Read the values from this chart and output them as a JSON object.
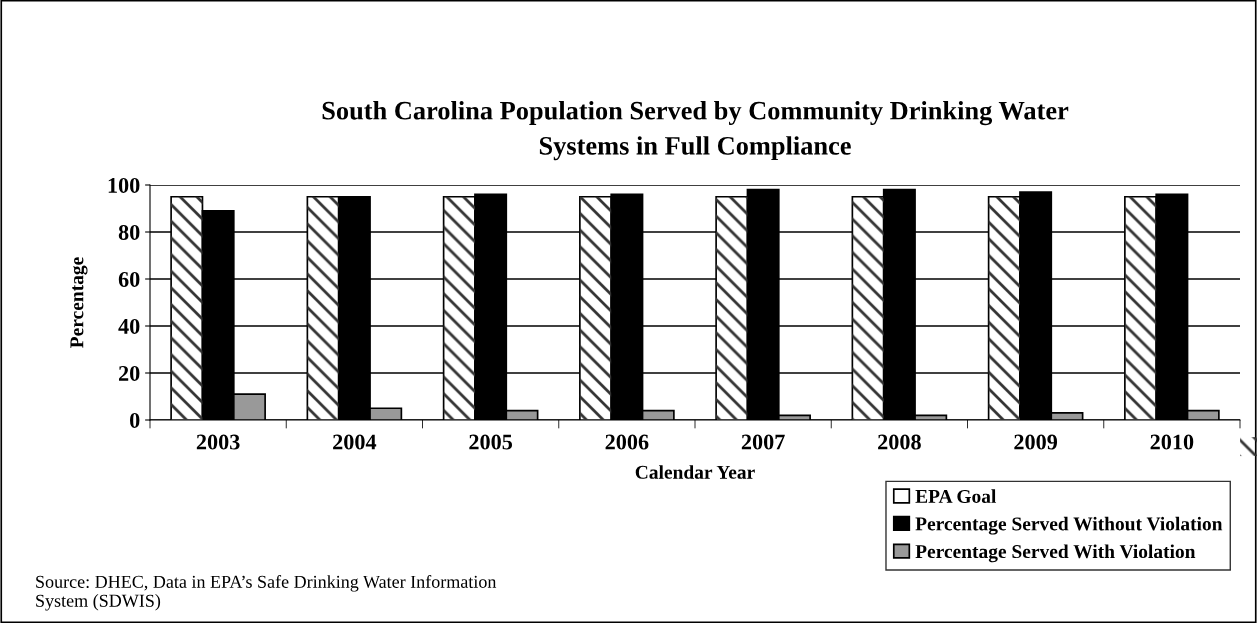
{
  "chart_data": {
    "type": "bar",
    "title": "South Carolina Population Served by Community Drinking Water\nSystems in Full Compliance",
    "xlabel": "Calendar Year",
    "ylabel": "Percentage",
    "categories": [
      "2003",
      "2004",
      "2005",
      "2006",
      "2007",
      "2008",
      "2009",
      "2010"
    ],
    "series": [
      {
        "name": "EPA Goal",
        "color": "#ffffff",
        "values": [
          95,
          95,
          95,
          95,
          95,
          95,
          95,
          95
        ]
      },
      {
        "name": "Percentage Served Without Violation",
        "color": "#000000",
        "values": [
          89,
          95,
          96,
          96,
          98,
          98,
          97,
          96
        ]
      },
      {
        "name": "Percentage Served With Violation",
        "color": "#999999",
        "values": [
          11,
          5,
          4,
          4,
          2,
          2,
          3,
          4
        ]
      }
    ],
    "ylim": [
      0,
      100
    ],
    "yticks": [
      0,
      20,
      40,
      60,
      80,
      100
    ],
    "grid": "y",
    "legend": "bottom right",
    "annotations": [
      "Source: DHEC, Data in EPA’s Safe Drinking Water Information System (SDWIS)"
    ]
  }
}
